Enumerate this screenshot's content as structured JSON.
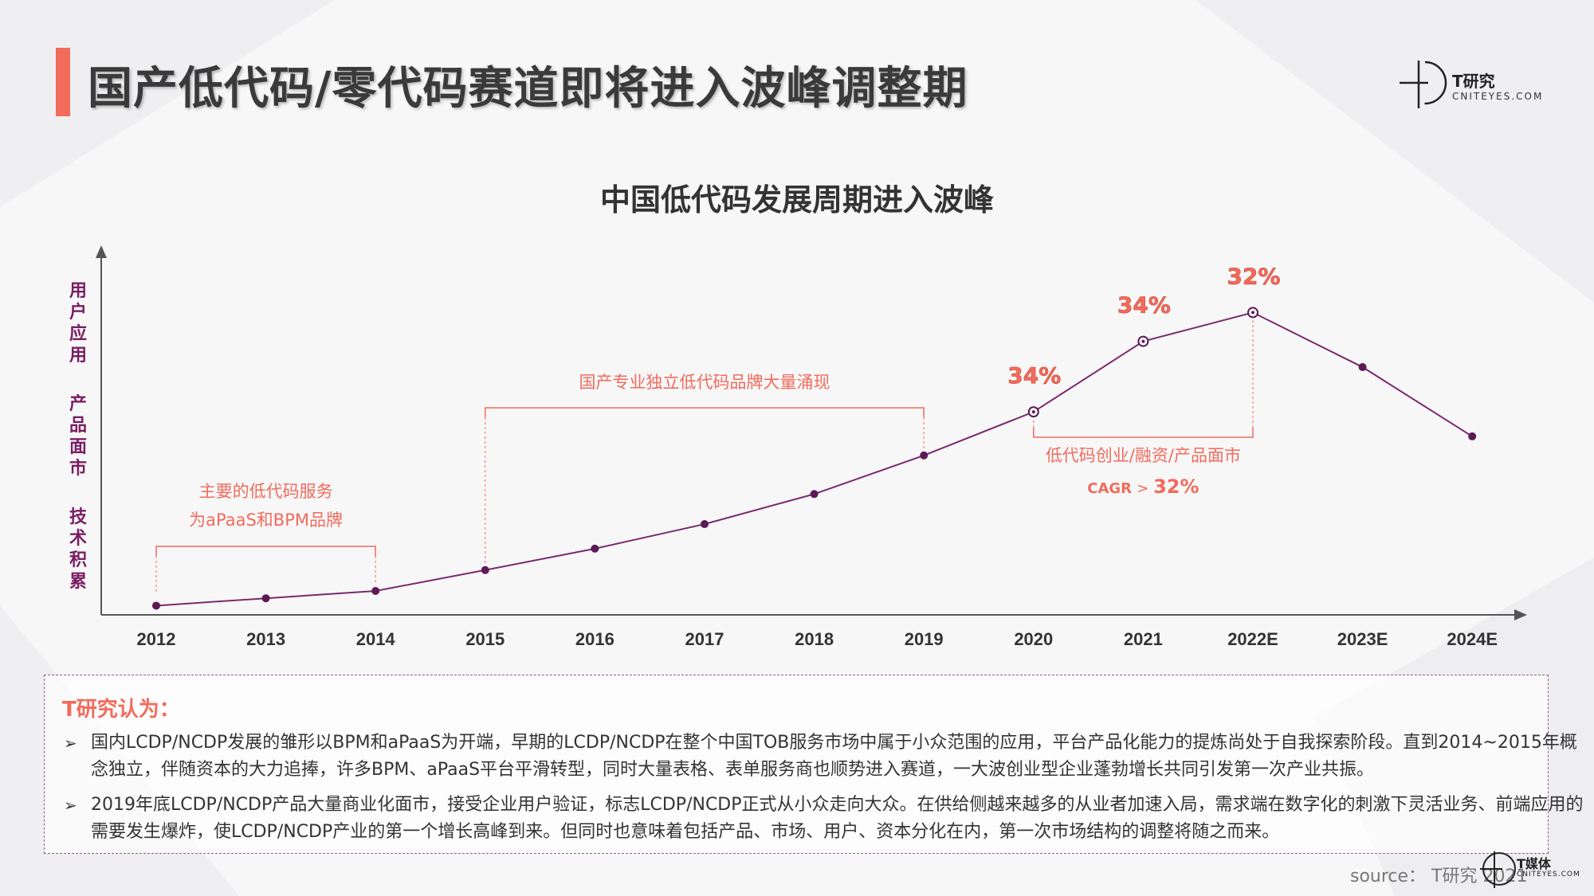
{
  "header": {
    "title": "国产低代码/零代码赛道即将进入波峰调整期",
    "logo": {
      "name": "T研究",
      "sub": "CNITEYES.COM"
    }
  },
  "chart_data": {
    "type": "line",
    "title": "中国低代码发展周期进入波峰",
    "categories": [
      "2012",
      "2013",
      "2014",
      "2015",
      "2016",
      "2017",
      "2018",
      "2019",
      "2020",
      "2021",
      "2022E",
      "2023E",
      "2024E"
    ],
    "values": [
      1.5,
      2.7,
      3.9,
      7.3,
      10.8,
      14.8,
      19.7,
      26.0,
      33.1,
      44.6,
      49.3,
      40.4,
      29.1
    ],
    "ylabel_groups": [
      "用户应用",
      "产品面市",
      "技术积累"
    ],
    "growth_labels": [
      {
        "category": "2020",
        "text": "34%"
      },
      {
        "category": "2021",
        "text": "34%"
      },
      {
        "category": "2022E",
        "text": "32%"
      }
    ],
    "annotations": [
      {
        "lines": [
          "主要的低代码服务",
          "为aPaaS和BPM品牌"
        ],
        "from": "2012",
        "to": "2014"
      },
      {
        "lines": [
          "国产专业独立低代码品牌大量涌现"
        ],
        "from": "2015",
        "to": "2019"
      },
      {
        "lines": [
          "低代码创业/融资/产品面市"
        ],
        "from": "2020",
        "to": "2022E",
        "cagr_prefix": "CAGR",
        "cagr_sign": ">",
        "cagr_value": "32%"
      }
    ],
    "grid": false,
    "colors": {
      "line": "#7a2a6e",
      "marker": "#5c1a55",
      "accent": "#f26b5b",
      "axis": "#555555"
    }
  },
  "notes": {
    "heading": "T研究认为：",
    "items": [
      "国内LCDP/NCDP发展的雏形以BPM和aPaaS为开端，早期的LCDP/NCDP在整个中国TOB服务市场中属于小众范围的应用，平台产品化能力的提炼尚处于自我探索阶段。直到2014~2015年概念独立，伴随资本的大力追捧，许多BPM、aPaaS平台平滑转型，同时大量表格、表单服务商也顺势进入赛道，一大波创业型企业蓬勃增长共同引发第一次产业共振。",
      "2019年底LCDP/NCDP产品大量商业化面市，接受企业用户验证，标志LCDP/NCDP正式从小众走向大众。在供给侧越来越多的从业者加速入局，需求端在数字化的刺激下灵活业务、前端应用的需要发生爆炸，使LCDP/NCDP产业的第一个增长高峰到来。但同时也意味着包括产品、市场、用户、资本分化在内，第一次市场结构的调整将随之而来。"
    ]
  },
  "footer": {
    "source": "source： T研究 2021",
    "logo": {
      "name": "T媒体",
      "sub": "CNITEYES.COM"
    }
  }
}
